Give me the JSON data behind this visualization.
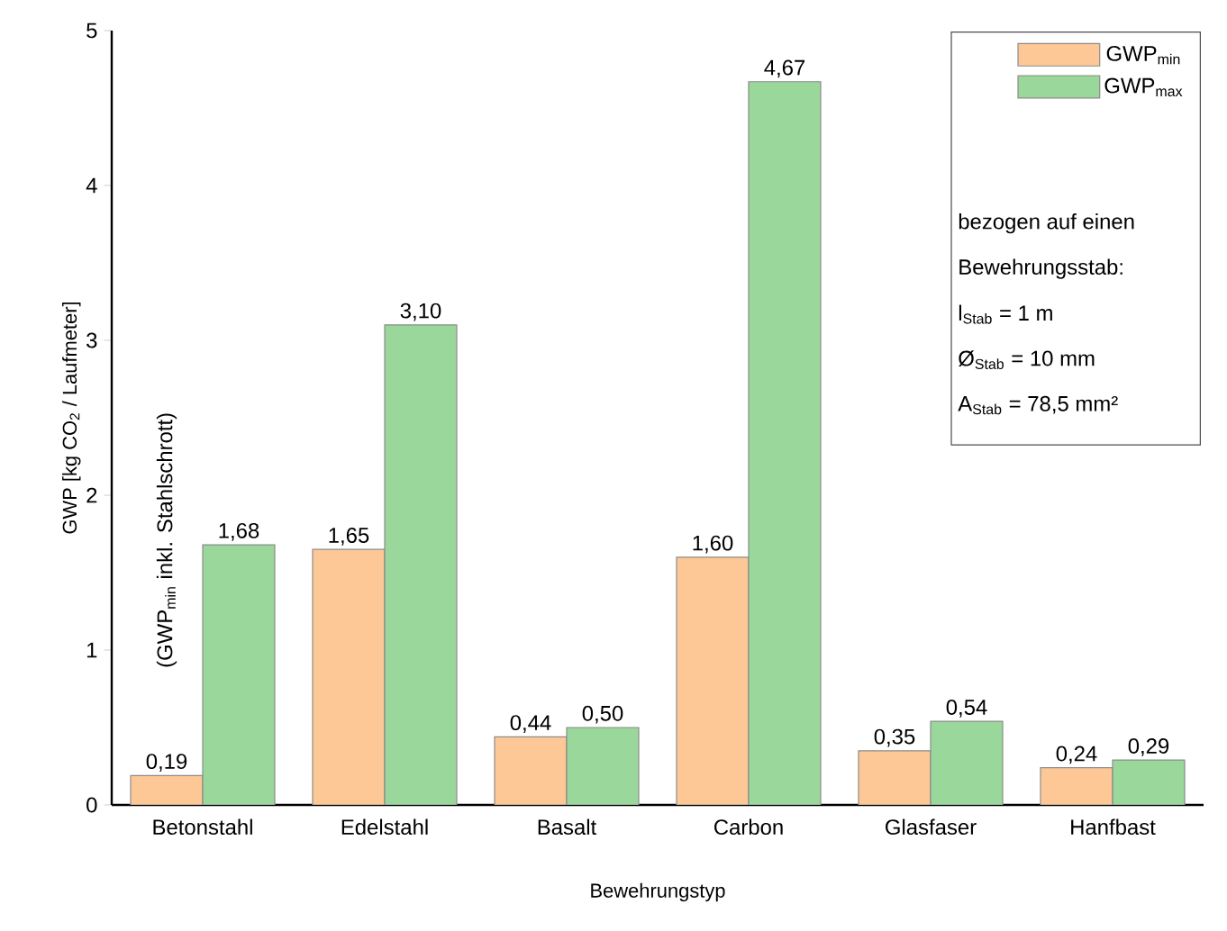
{
  "chart_data": {
    "type": "bar",
    "xlabel": "Bewehrungstyp",
    "ylabel": "GWP [kg CO$_{2}$ / Laufmeter]",
    "categories": [
      "Betonstahl",
      "Edelstahl",
      "Basalt",
      "Carbon",
      "Glasfaser",
      "Hanfbast"
    ],
    "series": [
      {
        "name": "GWP$_{min}$",
        "color": "#fdc896",
        "values": [
          0.19,
          1.65,
          0.44,
          1.6,
          0.35,
          0.24
        ],
        "value_labels": [
          "0,19",
          "1,65",
          "0,44",
          "1,60",
          "0,35",
          "0,24"
        ]
      },
      {
        "name": "GWP$_{max}$",
        "color": "#9ad79a",
        "values": [
          1.68,
          3.1,
          0.5,
          4.67,
          0.54,
          0.29
        ],
        "value_labels": [
          "1,68",
          "3,10",
          "0,50",
          "4,67",
          "0,54",
          "0,29"
        ]
      }
    ],
    "ylim": [
      0,
      5
    ],
    "yticks": [
      0,
      1,
      2,
      3,
      4,
      5
    ],
    "grid": false,
    "legend": "top right",
    "annotations": [
      "(GWP$_{min}$ inkl. Stahlschrott)",
      "bezogen auf einen",
      "Bewehrungsstab:",
      "l$_{Stab}$    = 1 m",
      "Ø$_{Stab}$ = 10 mm",
      "A$_{Stab}$  = 78,5 mm²"
    ]
  }
}
